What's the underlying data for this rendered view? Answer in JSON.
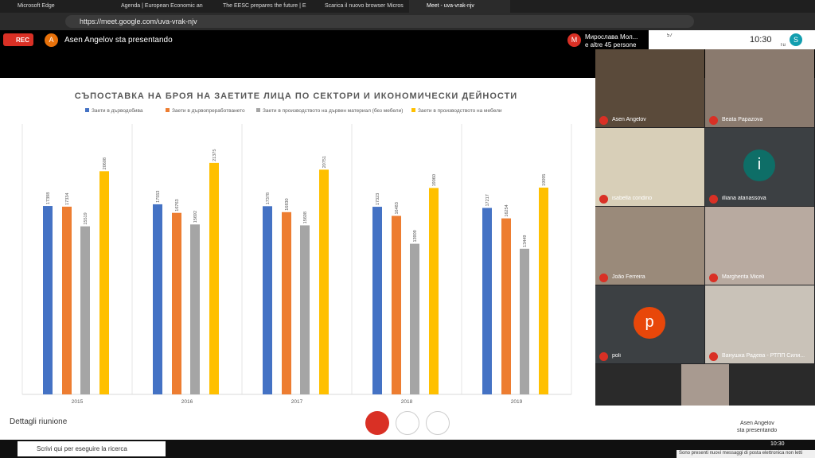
{
  "browser": {
    "tabs": [
      "Microsoft Edge",
      "Agenda | European Economic an",
      "The EESC prepares the future | E",
      "Scarica il nuovo browser Micros",
      "Meet - uva-vrak-njv"
    ],
    "url": "https://meet.google.com/uva-vrak-njv"
  },
  "meet": {
    "rec": "REC",
    "presenter_initial": "A",
    "presenter_status": "Asen Angelov sta presentando",
    "chat_initial": "M",
    "chat_name": "Мирослава Мол...",
    "chat_others": "e altre 45 persone",
    "people_count": "57",
    "time": "10:30",
    "self_initial": "S",
    "self_label": "Tu",
    "participants": [
      {
        "name": "Asen Angelov"
      },
      {
        "name": "Beata Papazova"
      },
      {
        "name": "isabella condino"
      },
      {
        "name": "illiana atanassova",
        "initial": "i"
      },
      {
        "name": "João Ferreira"
      },
      {
        "name": "Margherita Miceli"
      },
      {
        "name": "poli",
        "initial": "p"
      },
      {
        "name": "Ванушка Радева - РТПП Сили..."
      }
    ],
    "details": "Dettagli riunione",
    "presenting_name": "Asen Angelov",
    "presenting_label": "sta presentando"
  },
  "taskbar": {
    "search": "Scrivi qui per eseguire la ricerca",
    "time": "10:30",
    "notification": "Sono presenti nuovi messaggi di posta elettronica non letti"
  },
  "chart": {
    "type": "bar",
    "title": "СЪПОСТАВКА НА БРОЯ НА ЗАЕТИТЕ ЛИЦА ПО СЕКТОРИ И ИКОНОМИЧЕСКИ ДЕЙНОСТИ",
    "categories": [
      "2015",
      "2016",
      "2017",
      "2018",
      "2019"
    ],
    "series": [
      {
        "name": "Заети в дърводобива",
        "color": "#4472c4",
        "values": [
          17398,
          17553,
          17378,
          17323,
          17217
        ]
      },
      {
        "name": "Заети в дървопреработването",
        "color": "#ed7d31",
        "values": [
          17334,
          16763,
          16830,
          16483,
          16254
        ]
      },
      {
        "name": "Заети в производството на дървен материал (без мебели)",
        "color": "#a5a5a5",
        "values": [
          15519,
          15692,
          15608,
          13909,
          13449
        ]
      },
      {
        "name": "Заети в производството на мебели",
        "color": "#ffc000",
        "values": [
          20608,
          21375,
          20751,
          19060,
          19095
        ]
      }
    ]
  }
}
